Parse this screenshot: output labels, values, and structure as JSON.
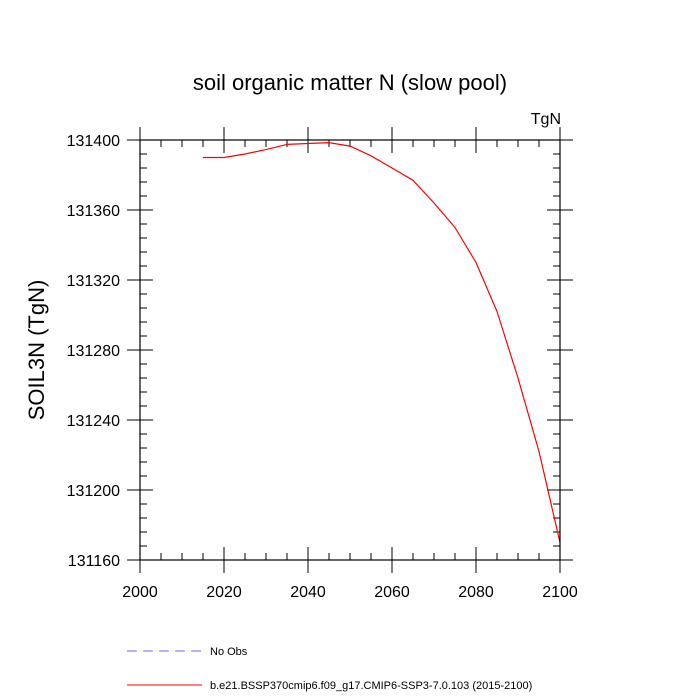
{
  "chart_data": {
    "type": "line",
    "title": "soil organic matter N (slow pool)",
    "units_label": "TgN",
    "xlabel": "",
    "ylabel": "SOIL3N  (TgN)",
    "xlim": [
      2000,
      2100
    ],
    "ylim": [
      131160,
      131400
    ],
    "x_ticks": [
      2000,
      2020,
      2040,
      2060,
      2080,
      2100
    ],
    "x_minor_step": 5,
    "y_ticks": [
      131160,
      131200,
      131240,
      131280,
      131320,
      131360,
      131400
    ],
    "y_minor_step": 8,
    "grid": false,
    "series": [
      {
        "name": "b.e21.BSSP370cmip6.f09_g17.CMIP6-SSP3-7.0.103 (2015-2100)",
        "color": "#ff0000",
        "dash": "solid",
        "x": [
          2015,
          2020,
          2025,
          2030,
          2035,
          2040,
          2045,
          2050,
          2055,
          2060,
          2065,
          2070,
          2075,
          2080,
          2085,
          2090,
          2095,
          2100
        ],
        "y": [
          131390,
          131390,
          131392,
          131394.5,
          131397.5,
          131398,
          131398.5,
          131396.5,
          131391,
          131384,
          131377,
          131364,
          131350,
          131330,
          131302,
          131264,
          131222,
          131170
        ]
      },
      {
        "name": "No Obs",
        "color": "#6666ff",
        "dash": "dashed",
        "x": [],
        "y": []
      }
    ],
    "legend": {
      "placement": "bottom-left",
      "entries": [
        {
          "label": "No Obs",
          "color": "#6666ff",
          "dash": "dashed"
        },
        {
          "label": "b.e21.BSSP370cmip6.f09_g17.CMIP6-SSP3-7.0.103 (2015-2100)",
          "color": "#ff0000",
          "dash": "solid"
        }
      ]
    }
  }
}
